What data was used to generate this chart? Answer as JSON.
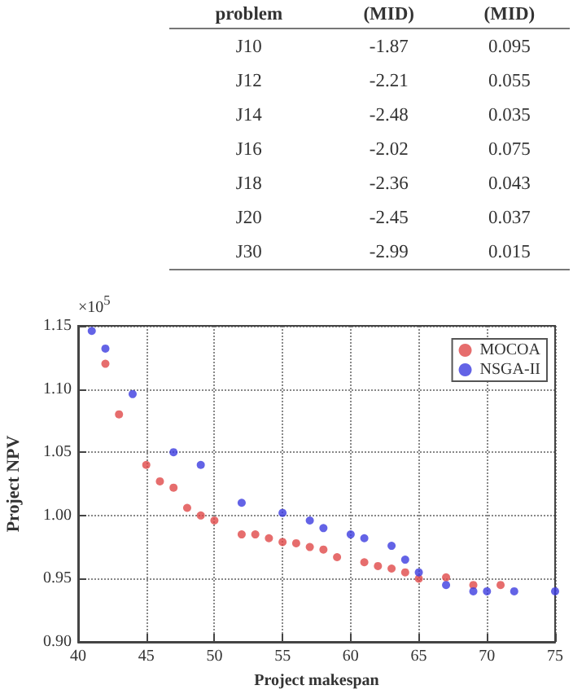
{
  "chart_data": [
    {
      "type": "other",
      "categories": [
        "problem",
        "(MID)",
        "(MID)"
      ],
      "cell_labels": [
        [
          "J10",
          "-1.87",
          "0.095"
        ],
        [
          "J12",
          "-2.21",
          "0.055"
        ],
        [
          "J14",
          "-2.48",
          "0.035"
        ],
        [
          "J16",
          "-2.02",
          "0.075"
        ],
        [
          "J18",
          "-2.36",
          "0.043"
        ],
        [
          "J20",
          "-2.45",
          "0.037"
        ],
        [
          "J30",
          "-2.99",
          "0.015"
        ]
      ]
    },
    {
      "type": "scatter",
      "xlabel": "Project makespan",
      "ylabel": "Project NPV",
      "annotations": [
        "×10$^{5}$"
      ],
      "xlim": [
        40,
        75
      ],
      "xticks": [
        40,
        45,
        50,
        55,
        60,
        65,
        70,
        75
      ],
      "ylim": [
        0.9,
        1.15
      ],
      "yticks": [
        {
          "value": 0.9,
          "label": "0.90"
        },
        0.95,
        {
          "value": 1.0,
          "label": "1.00"
        },
        1.05,
        {
          "value": 1.1,
          "label": "1.10"
        },
        1.15
      ],
      "grid": true,
      "legend": "top right",
      "marker": "circle",
      "series": [
        {
          "name": "MOCOA",
          "color": "#e04848",
          "x": [
            42,
            43,
            45,
            46,
            47,
            48,
            49,
            50,
            52,
            53,
            54,
            55,
            56,
            57,
            58,
            59,
            61,
            62,
            63,
            64,
            65,
            67,
            69,
            71
          ],
          "values": [
            1.12,
            1.08,
            1.04,
            1.027,
            1.022,
            1.006,
            1.0,
            0.996,
            0.985,
            0.985,
            0.982,
            0.979,
            0.978,
            0.975,
            0.973,
            0.967,
            0.963,
            0.96,
            0.958,
            0.955,
            0.95,
            0.951,
            0.945,
            0.945
          ]
        },
        {
          "name": "NSGA-II",
          "color": "#3c3ce0",
          "x": [
            41,
            42,
            44,
            47,
            49,
            52,
            55,
            57,
            58,
            60,
            61,
            63,
            64,
            65,
            67,
            69,
            70,
            72,
            75
          ],
          "values": [
            1.146,
            1.132,
            1.096,
            1.05,
            1.04,
            1.01,
            1.002,
            0.996,
            0.99,
            0.985,
            0.982,
            0.976,
            0.965,
            0.955,
            0.945,
            0.94,
            0.94,
            0.94,
            0.94
          ]
        }
      ]
    }
  ]
}
